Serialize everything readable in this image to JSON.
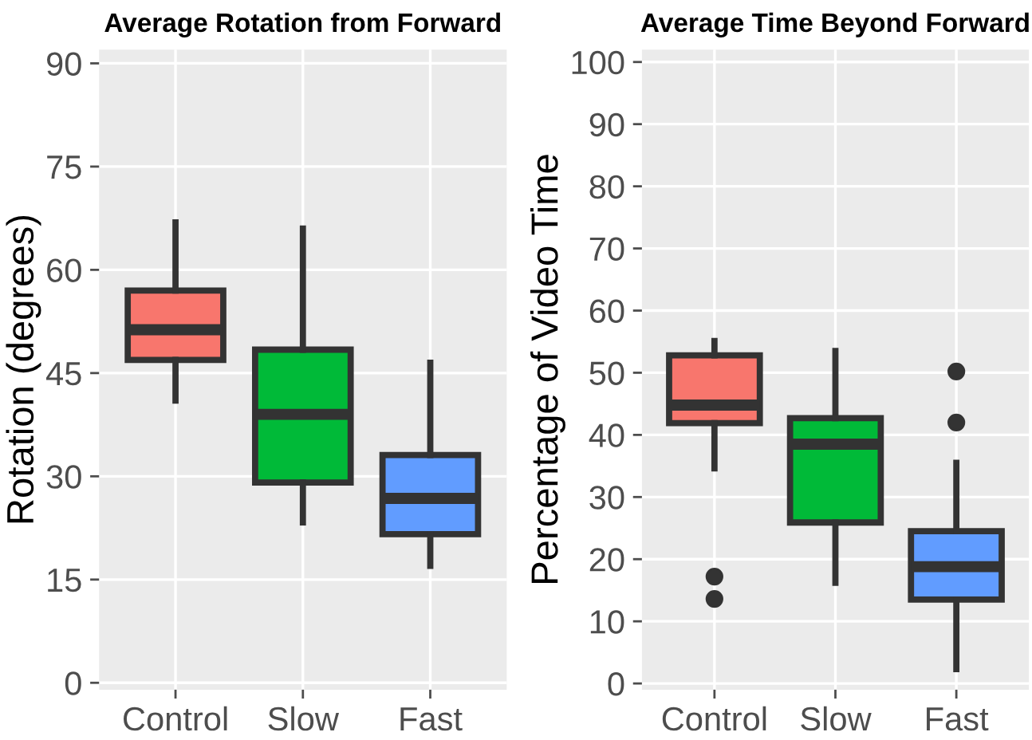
{
  "chart_data": [
    {
      "type": "box",
      "title": "Average Rotation from Forward",
      "ylabel": "Rotation (degrees)",
      "categories": [
        "Control",
        "Slow",
        "Fast"
      ],
      "colors": [
        "#f8766d",
        "#00ba38",
        "#619cff"
      ],
      "boxes": [
        {
          "low": 41.0,
          "q1": 46.9,
          "median": 51.3,
          "q3": 57.0,
          "high": 66.9
        },
        {
          "low": 23.3,
          "q1": 29.1,
          "median": 39.0,
          "q3": 48.4,
          "high": 66.0
        },
        {
          "low": 17.0,
          "q1": 21.6,
          "median": 26.8,
          "q3": 33.1,
          "high": 46.5
        }
      ],
      "ylim": [
        -1,
        92
      ],
      "yticks": [
        0,
        15,
        30,
        45,
        60,
        75,
        90
      ],
      "grid": true,
      "legend": false
    },
    {
      "type": "box",
      "title": "Average Time Beyond Forward",
      "ylabel": "Percentage of Video Time",
      "categories": [
        "Control",
        "Slow",
        "Fast"
      ],
      "colors": [
        "#f8766d",
        "#00ba38",
        "#619cff"
      ],
      "boxes": [
        {
          "low": 34.6,
          "q1": 41.9,
          "median": 44.8,
          "q3": 52.8,
          "high": 55.1,
          "outliers": [
            17.2,
            13.6
          ]
        },
        {
          "low": 16.2,
          "q1": 25.9,
          "median": 38.5,
          "q3": 42.7,
          "high": 53.5
        },
        {
          "low": 2.3,
          "q1": 13.5,
          "median": 18.8,
          "q3": 24.5,
          "high": 35.5,
          "outliers": [
            50.2,
            42.0
          ]
        }
      ],
      "ylim": [
        -1,
        102
      ],
      "yticks": [
        0,
        10,
        20,
        30,
        40,
        50,
        60,
        70,
        80,
        90,
        100
      ],
      "grid": true,
      "legend": false
    }
  ]
}
